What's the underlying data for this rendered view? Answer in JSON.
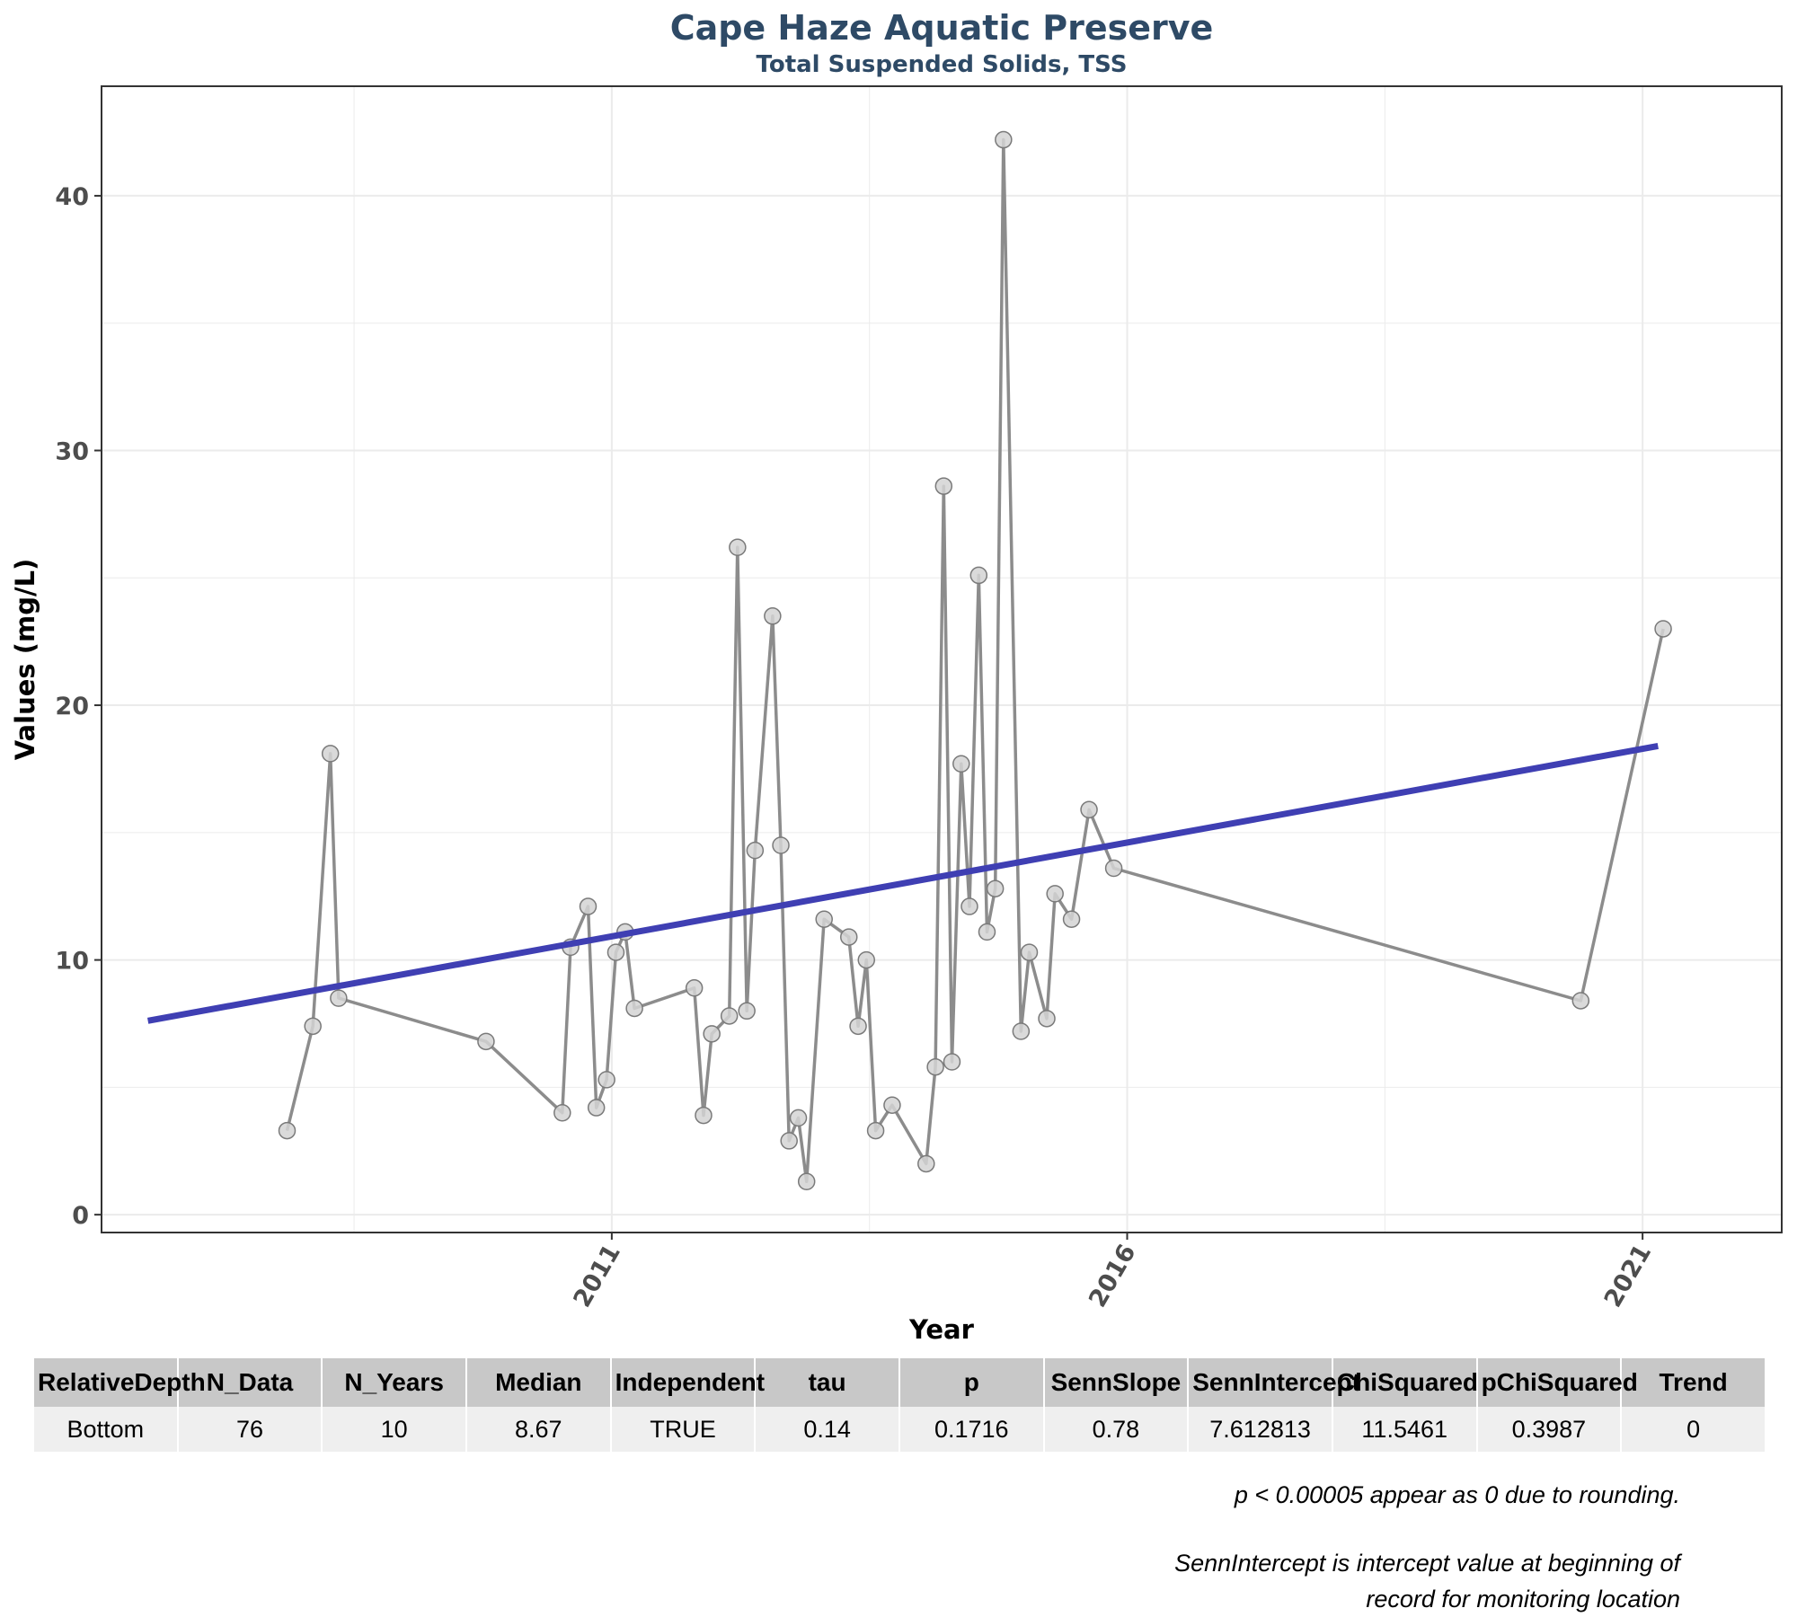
{
  "chart_data": {
    "type": "line",
    "title": "Cape Haze Aquatic Preserve",
    "subtitle": "Total Suspended Solids, TSS",
    "xlabel": "Year",
    "ylabel": "Values (mg/L)",
    "xlim": [
      2006.05,
      2022.35
    ],
    "ylim": [
      -0.7,
      44.3
    ],
    "x_ticks": [
      2011,
      2016,
      2021
    ],
    "y_ticks": [
      0,
      10,
      20,
      30,
      40
    ],
    "grid": true,
    "series": [
      {
        "x": [
          2007.85,
          2008.1,
          2008.27,
          2008.35,
          2009.78,
          2010.52,
          2010.6,
          2010.77,
          2010.85,
          2010.95,
          2011.04,
          2011.13,
          2011.22,
          2011.8,
          2011.89,
          2011.97,
          2012.14,
          2012.22,
          2012.31,
          2012.39,
          2012.56,
          2012.64,
          2012.72,
          2012.81,
          2012.89,
          2013.06,
          2013.3,
          2013.39,
          2013.47,
          2013.56,
          2013.72,
          2014.05,
          2014.14,
          2014.22,
          2014.3,
          2014.39,
          2014.47,
          2014.56,
          2014.64,
          2014.72,
          2014.8,
          2014.97,
          2015.05,
          2015.22,
          2015.3,
          2015.46,
          2015.63,
          2015.87,
          2020.4,
          2021.2
        ],
        "values": [
          3.3,
          7.4,
          18.1,
          8.5,
          6.8,
          4,
          10.5,
          12.1,
          4.2,
          5.3,
          10.3,
          11.1,
          8.1,
          8.9,
          3.9,
          7.1,
          7.8,
          26.2,
          8,
          14.3,
          23.5,
          14.5,
          2.9,
          3.8,
          1.3,
          11.6,
          10.9,
          7.4,
          10,
          3.3,
          4.3,
          2,
          5.8,
          28.6,
          6,
          17.7,
          12.1,
          25.1,
          11.1,
          12.8,
          42.2,
          7.2,
          10.3,
          7.7,
          12.6,
          11.6,
          15.9,
          13.6,
          8.4,
          23
        ]
      }
    ],
    "trend_line": {
      "x": [
        2006.5,
        2021.15
      ],
      "values": [
        7.612813,
        18.4
      ]
    }
  },
  "colors": {
    "title": "#2e4a66",
    "series_line": "#8c8c8c",
    "point_fill": "#d3d3d3",
    "point_stroke": "#7a7a7a",
    "trend": "#3f3fb3",
    "grid": "#ebebeb",
    "panel_border": "#333333"
  },
  "table": {
    "headers": [
      "RelativeDepth",
      "N_Data",
      "N_Years",
      "Median",
      "Independent",
      "tau",
      "p",
      "SennSlope",
      "SennIntercept",
      "ChiSquared",
      "pChiSquared",
      "Trend"
    ],
    "rows": [
      [
        "Bottom",
        "76",
        "10",
        "8.67",
        "TRUE",
        "0.14",
        "0.1716",
        "0.78",
        "7.612813",
        "11.5461",
        "0.3987",
        "0"
      ]
    ]
  },
  "notes": {
    "rounding": "p < 0.00005 appear as 0 due to rounding.",
    "intercept_line1": "SennIntercept is intercept value at beginning of",
    "intercept_line2": "record for monitoring location"
  }
}
